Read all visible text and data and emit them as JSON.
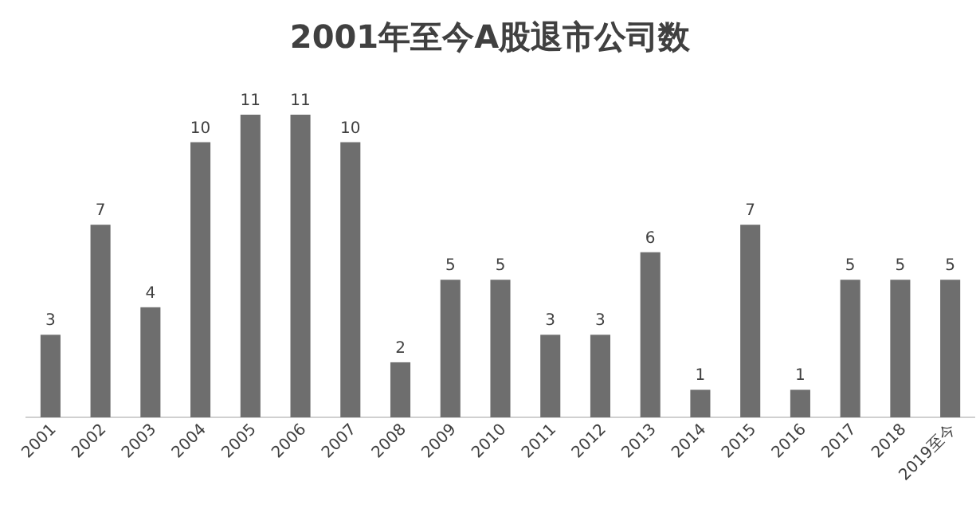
{
  "chart_data": {
    "type": "bar",
    "title": "2001年至今A股退市公司数",
    "categories": [
      "2001",
      "2002",
      "2003",
      "2004",
      "2005",
      "2006",
      "2007",
      "2008",
      "2009",
      "2010",
      "2011",
      "2012",
      "2013",
      "2014",
      "2015",
      "2016",
      "2017",
      "2018",
      "2019至今"
    ],
    "values": [
      3,
      7,
      4,
      10,
      11,
      11,
      10,
      2,
      5,
      5,
      3,
      3,
      6,
      1,
      7,
      1,
      5,
      5,
      5
    ],
    "color": "#6e6e6e",
    "data_labels": true
  }
}
